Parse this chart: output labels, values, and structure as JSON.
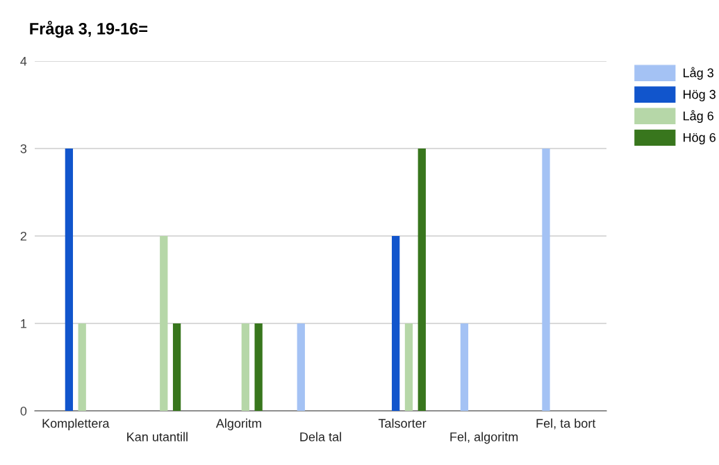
{
  "chart_data": {
    "type": "bar",
    "title": "Fråga 3, 19-16=",
    "categories": [
      "Komplettera",
      "Kan utantill",
      "Algoritm",
      "Dela tal",
      "Talsorter",
      "Fel, algoritm",
      "Fel, ta bort"
    ],
    "series": [
      {
        "name": "Låg 3",
        "color": "#a4c2f4",
        "values": [
          0,
          0,
          0,
          1,
          0,
          1,
          3
        ]
      },
      {
        "name": "Hög 3",
        "color": "#1155cc",
        "values": [
          3,
          0,
          0,
          0,
          2,
          0,
          0
        ]
      },
      {
        "name": "Låg 6",
        "color": "#b6d7a8",
        "values": [
          1,
          2,
          1,
          0,
          1,
          0,
          0
        ]
      },
      {
        "name": "Hög 6",
        "color": "#38761d",
        "values": [
          0,
          1,
          1,
          0,
          3,
          0,
          0
        ]
      }
    ],
    "ylim": [
      0,
      4
    ],
    "yticks": [
      0,
      1,
      2,
      3,
      4
    ],
    "grid": "y",
    "legend": "top right"
  }
}
